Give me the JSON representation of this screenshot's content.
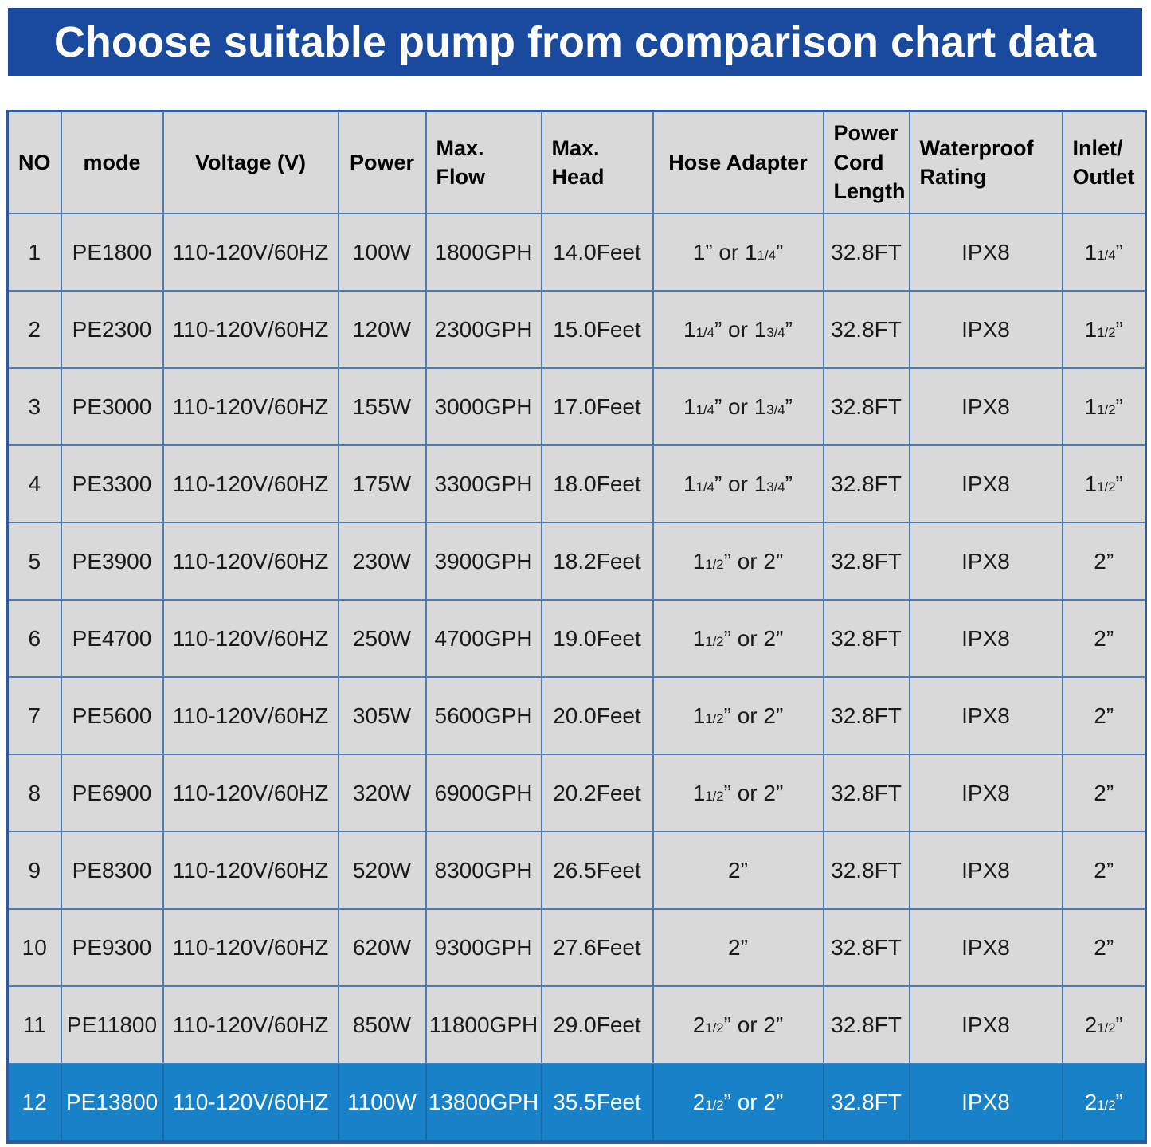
{
  "banner_title": "Choose suitable pump from comparison chart data",
  "colors": {
    "banner_blue": "#1a4a9e",
    "highlight_row_blue": "#1881c8",
    "cell_gray": "#d9d9d9",
    "grid_line_blue": "#4f7ab5",
    "outer_border_blue": "#2e5b9f",
    "header_text": "#000000",
    "cell_text": "#1a1a1a",
    "highlight_text": "#ffffff"
  },
  "chart_data": {
    "type": "table",
    "title": "Choose suitable pump from comparison chart data",
    "highlighted_row_no": "12",
    "columns": [
      {
        "key": "no",
        "label": "NO"
      },
      {
        "key": "mode",
        "label": "mode"
      },
      {
        "key": "voltage",
        "label": "Voltage (V)"
      },
      {
        "key": "power",
        "label": "Power"
      },
      {
        "key": "flow",
        "label": "Max.\nFlow"
      },
      {
        "key": "head",
        "label": "Max.\nHead"
      },
      {
        "key": "hose",
        "label": "Hose Adapter"
      },
      {
        "key": "cord",
        "label": "Power\nCord\nLength"
      },
      {
        "key": "waterproof",
        "label": "Waterproof\nRating"
      },
      {
        "key": "inlet",
        "label": "Inlet/\nOutlet"
      }
    ],
    "rows": [
      {
        "no": "1",
        "mode": "PE1800",
        "voltage": "110-120V/60HZ",
        "power": "100W",
        "flow": "1800GPH",
        "head": "14.0Feet",
        "hose": "1” or 1{1/4}”",
        "cord": "32.8FT",
        "waterproof": "IPX8",
        "inlet": "1{1/4}”"
      },
      {
        "no": "2",
        "mode": "PE2300",
        "voltage": "110-120V/60HZ",
        "power": "120W",
        "flow": "2300GPH",
        "head": "15.0Feet",
        "hose": "1{1/4}” or 1{3/4}”",
        "cord": "32.8FT",
        "waterproof": "IPX8",
        "inlet": "1{1/2}”"
      },
      {
        "no": "3",
        "mode": "PE3000",
        "voltage": "110-120V/60HZ",
        "power": "155W",
        "flow": "3000GPH",
        "head": "17.0Feet",
        "hose": "1{1/4}” or 1{3/4}”",
        "cord": "32.8FT",
        "waterproof": "IPX8",
        "inlet": "1{1/2}”"
      },
      {
        "no": "4",
        "mode": "PE3300",
        "voltage": "110-120V/60HZ",
        "power": "175W",
        "flow": "3300GPH",
        "head": "18.0Feet",
        "hose": "1{1/4}” or 1{3/4}”",
        "cord": "32.8FT",
        "waterproof": "IPX8",
        "inlet": "1{1/2}”"
      },
      {
        "no": "5",
        "mode": "PE3900",
        "voltage": "110-120V/60HZ",
        "power": "230W",
        "flow": "3900GPH",
        "head": "18.2Feet",
        "hose": "1{1/2}” or 2”",
        "cord": "32.8FT",
        "waterproof": "IPX8",
        "inlet": "2”"
      },
      {
        "no": "6",
        "mode": "PE4700",
        "voltage": "110-120V/60HZ",
        "power": "250W",
        "flow": "4700GPH",
        "head": "19.0Feet",
        "hose": "1{1/2}” or 2”",
        "cord": "32.8FT",
        "waterproof": "IPX8",
        "inlet": "2”"
      },
      {
        "no": "7",
        "mode": "PE5600",
        "voltage": "110-120V/60HZ",
        "power": "305W",
        "flow": "5600GPH",
        "head": "20.0Feet",
        "hose": "1{1/2}” or 2”",
        "cord": "32.8FT",
        "waterproof": "IPX8",
        "inlet": "2”"
      },
      {
        "no": "8",
        "mode": "PE6900",
        "voltage": "110-120V/60HZ",
        "power": "320W",
        "flow": "6900GPH",
        "head": "20.2Feet",
        "hose": "1{1/2}” or 2”",
        "cord": "32.8FT",
        "waterproof": "IPX8",
        "inlet": "2”"
      },
      {
        "no": "9",
        "mode": "PE8300",
        "voltage": "110-120V/60HZ",
        "power": "520W",
        "flow": "8300GPH",
        "head": "26.5Feet",
        "hose": "2”",
        "cord": "32.8FT",
        "waterproof": "IPX8",
        "inlet": "2”"
      },
      {
        "no": "10",
        "mode": "PE9300",
        "voltage": "110-120V/60HZ",
        "power": "620W",
        "flow": "9300GPH",
        "head": "27.6Feet",
        "hose": "2”",
        "cord": "32.8FT",
        "waterproof": "IPX8",
        "inlet": "2”"
      },
      {
        "no": "11",
        "mode": "PE11800",
        "voltage": "110-120V/60HZ",
        "power": "850W",
        "flow": "11800GPH",
        "head": "29.0Feet",
        "hose": "2{1/2}” or 2”",
        "cord": "32.8FT",
        "waterproof": "IPX8",
        "inlet": "2{1/2}”"
      },
      {
        "no": "12",
        "mode": "PE13800",
        "voltage": "110-120V/60HZ",
        "power": "1100W",
        "flow": "13800GPH",
        "head": "35.5Feet",
        "hose": "2{1/2}” or 2”",
        "cord": "32.8FT",
        "waterproof": "IPX8",
        "inlet": "2{1/2}”"
      }
    ]
  }
}
